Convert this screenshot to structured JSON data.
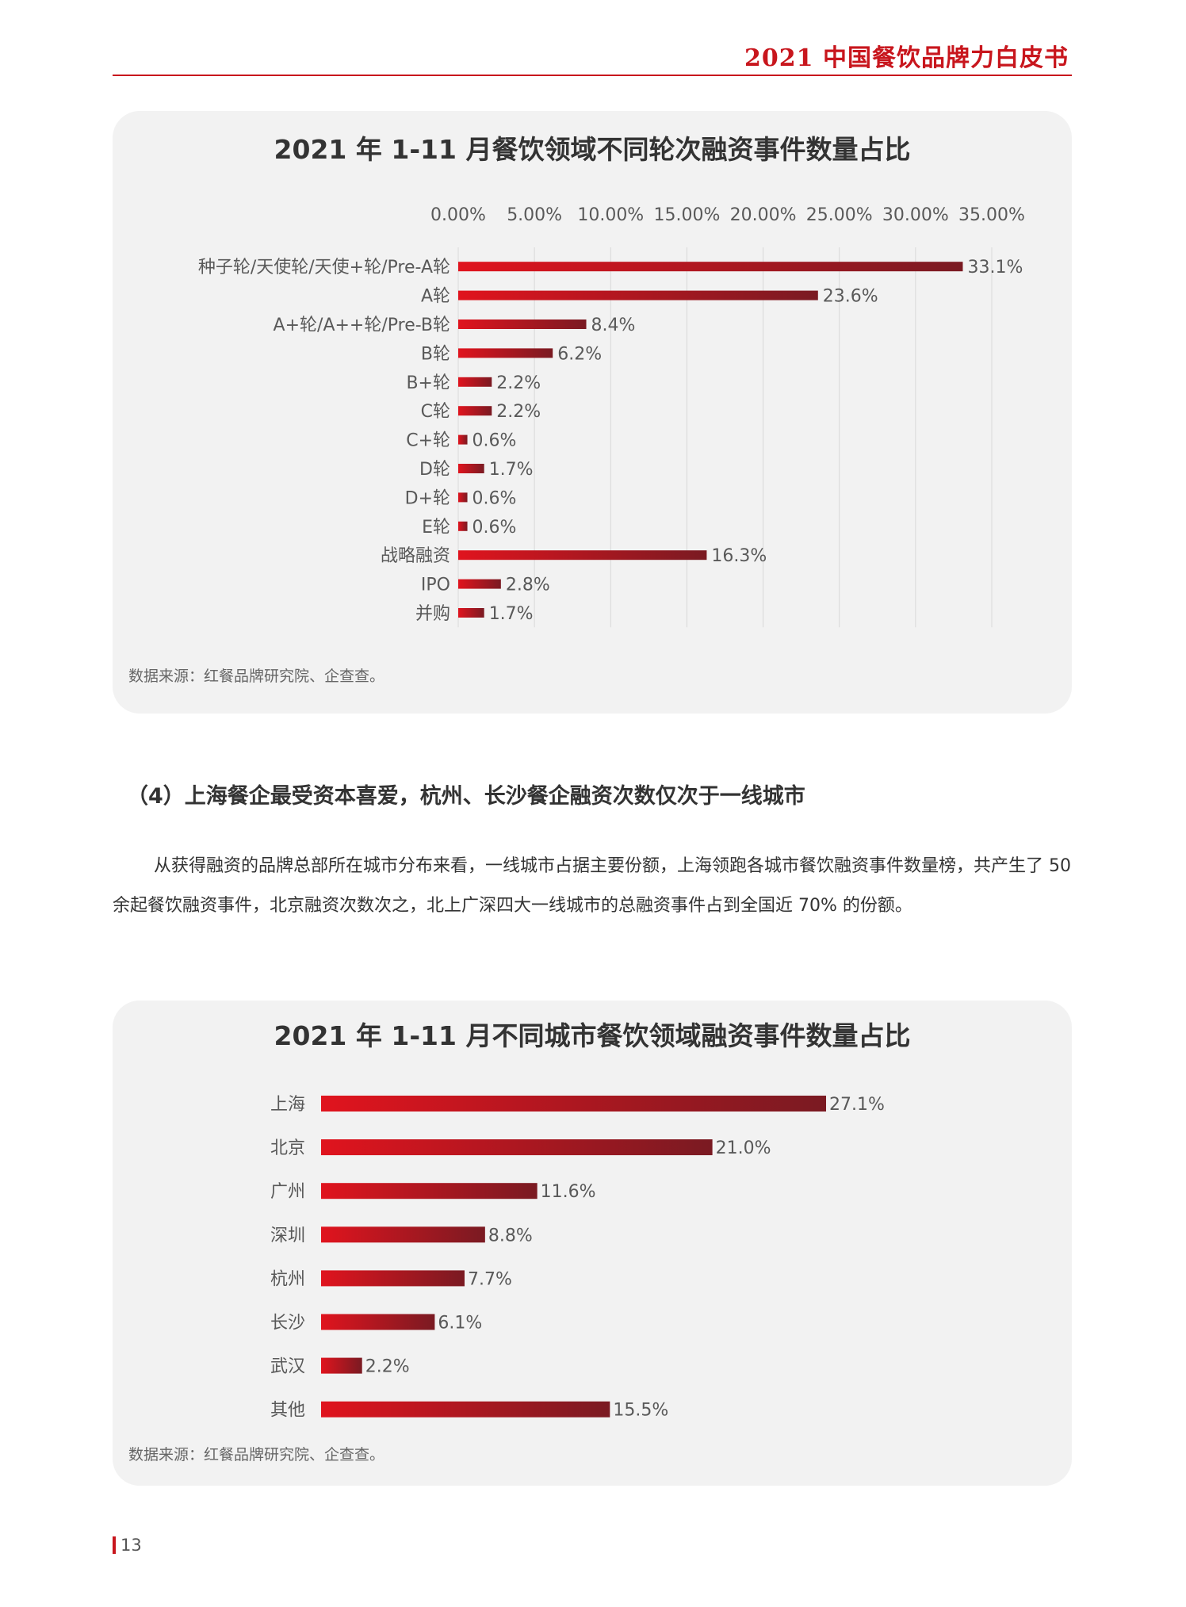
{
  "header": {
    "title": "2021 中国餐饮品牌力白皮书"
  },
  "chart_data": [
    {
      "type": "bar",
      "orientation": "horizontal",
      "title": "2021 年 1-11 月餐饮领域不同轮次融资事件数量占比",
      "categories": [
        "种子轮/天使轮/天使+轮/Pre-A轮",
        "A轮",
        "A+轮/A++轮/Pre-B轮",
        "B轮",
        "B+轮",
        "C轮",
        "C+轮",
        "D轮",
        "D+轮",
        "E轮",
        "战略融资",
        "IPO",
        "并购"
      ],
      "values": [
        33.1,
        23.6,
        8.4,
        6.2,
        2.2,
        2.2,
        0.6,
        1.7,
        0.6,
        0.6,
        16.3,
        2.8,
        1.7
      ],
      "value_labels": [
        "33.1%",
        "23.6%",
        "8.4%",
        "6.2%",
        "2.2%",
        "2.2%",
        "0.6%",
        "1.7%",
        "0.6%",
        "0.6%",
        "16.3%",
        "2.8%",
        "1.7%"
      ],
      "xlim": [
        0,
        35
      ],
      "x_ticks": [
        "0.00%",
        "5.00%",
        "10.00%",
        "15.00%",
        "20.00%",
        "25.00%",
        "30.00%",
        "35.00%"
      ],
      "x_axis_position": "top",
      "grid": "vertical",
      "source": "数据来源：红餐品牌研究院、企查查。"
    },
    {
      "type": "bar",
      "orientation": "horizontal",
      "title": "2021 年 1-11 月不同城市餐饮领域融资事件数量占比",
      "categories": [
        "上海",
        "北京",
        "广州",
        "深圳",
        "杭州",
        "长沙",
        "武汉",
        "其他"
      ],
      "values": [
        27.1,
        21.0,
        11.6,
        8.8,
        7.7,
        6.1,
        2.2,
        15.5
      ],
      "value_labels": [
        "27.1%",
        "21.0%",
        "11.6%",
        "8.8%",
        "7.7%",
        "6.1%",
        "2.2%",
        "15.5%"
      ],
      "xlim": [
        0,
        30
      ],
      "grid": "none",
      "source": "数据来源：红餐品牌研究院、企查查。"
    }
  ],
  "section": {
    "heading": "（4）上海餐企最受资本喜爱，杭州、长沙餐企融资次数仅次于一线城市",
    "paragraph": "从获得融资的品牌总部所在城市分布来看，一线城市占据主要份额，上海领跑各城市餐饮融资事件数量榜，共产生了 50 余起餐饮融资事件，北京融资次数次之，北上广深四大一线城市的总融资事件占到全国近 70% 的份额。"
  },
  "footer": {
    "page_number": "13"
  },
  "colors": {
    "accent": "#c8161d",
    "bar_start": "#e0141e",
    "bar_end": "#7a1a22",
    "panel_bg": "#f2f2f2"
  }
}
